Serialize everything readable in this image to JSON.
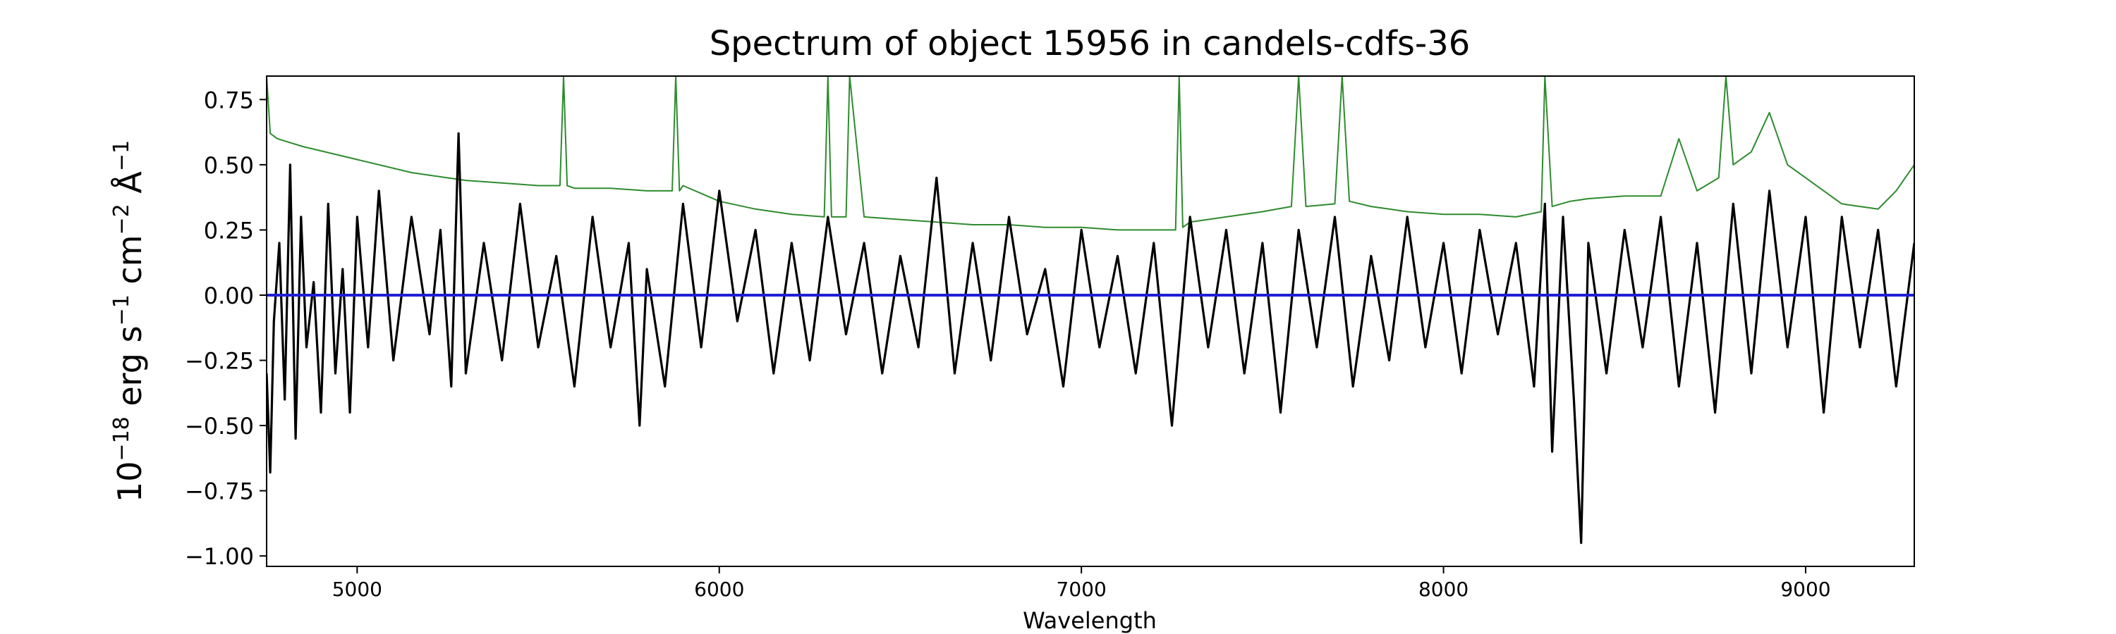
{
  "chart_data": {
    "type": "line",
    "title": "Spectrum of object 15956 in candels-cdfs-36",
    "xlabel": "Wavelength",
    "ylabel_parts": {
      "base": "10",
      "exp1": "−18",
      "t1": " erg s",
      "exp2": "−1",
      "t2": " cm",
      "exp3": "−2",
      "t3": " Å",
      "exp4": "−1"
    },
    "xlim": [
      4750,
      9300
    ],
    "ylim": [
      -1.04,
      0.84
    ],
    "xticks": [
      5000,
      6000,
      7000,
      8000,
      9000
    ],
    "yticks": [
      -1.0,
      -0.75,
      -0.5,
      -0.25,
      0.0,
      0.25,
      0.5,
      0.75
    ],
    "xtick_labels": [
      "5000",
      "6000",
      "7000",
      "8000",
      "9000"
    ],
    "ytick_labels": [
      "−1.00",
      "−0.75",
      "−0.50",
      "−0.25",
      "0.00",
      "0.25",
      "0.50",
      "0.75"
    ],
    "grid": false,
    "colors": {
      "flux": "#000000",
      "error": "#2e8b2e",
      "zero": "#1f1fd6"
    },
    "series": [
      {
        "role": "flux",
        "x": [
          4750,
          4760,
          4770,
          4785,
          4800,
          4815,
          4830,
          4845,
          4860,
          4880,
          4900,
          4920,
          4940,
          4960,
          4980,
          5000,
          5030,
          5060,
          5100,
          5150,
          5200,
          5230,
          5260,
          5280,
          5300,
          5350,
          5400,
          5450,
          5500,
          5550,
          5600,
          5650,
          5700,
          5750,
          5780,
          5800,
          5850,
          5900,
          5950,
          6000,
          6050,
          6100,
          6150,
          6200,
          6250,
          6300,
          6350,
          6400,
          6450,
          6500,
          6550,
          6600,
          6650,
          6700,
          6750,
          6800,
          6850,
          6900,
          6950,
          7000,
          7050,
          7100,
          7150,
          7200,
          7250,
          7300,
          7350,
          7400,
          7450,
          7500,
          7550,
          7600,
          7650,
          7700,
          7750,
          7800,
          7850,
          7900,
          7950,
          8000,
          8050,
          8100,
          8150,
          8200,
          8250,
          8280,
          8300,
          8330,
          8360,
          8380,
          8400,
          8450,
          8500,
          8550,
          8600,
          8650,
          8700,
          8750,
          8800,
          8850,
          8900,
          8950,
          9000,
          9050,
          9100,
          9150,
          9200,
          9250,
          9300
        ],
        "y": [
          -0.3,
          -0.68,
          -0.1,
          0.2,
          -0.4,
          0.5,
          -0.55,
          0.3,
          -0.2,
          0.05,
          -0.45,
          0.35,
          -0.3,
          0.1,
          -0.45,
          0.3,
          -0.2,
          0.4,
          -0.25,
          0.3,
          -0.15,
          0.25,
          -0.35,
          0.62,
          -0.3,
          0.2,
          -0.25,
          0.35,
          -0.2,
          0.15,
          -0.35,
          0.3,
          -0.2,
          0.2,
          -0.5,
          0.1,
          -0.35,
          0.35,
          -0.2,
          0.4,
          -0.1,
          0.25,
          -0.3,
          0.2,
          -0.25,
          0.3,
          -0.15,
          0.2,
          -0.3,
          0.15,
          -0.2,
          0.45,
          -0.3,
          0.2,
          -0.25,
          0.3,
          -0.15,
          0.1,
          -0.35,
          0.25,
          -0.2,
          0.15,
          -0.3,
          0.2,
          -0.5,
          0.3,
          -0.2,
          0.25,
          -0.3,
          0.2,
          -0.45,
          0.25,
          -0.2,
          0.3,
          -0.35,
          0.15,
          -0.25,
          0.3,
          -0.2,
          0.2,
          -0.3,
          0.25,
          -0.15,
          0.2,
          -0.35,
          0.35,
          -0.6,
          0.3,
          -0.4,
          -0.95,
          0.2,
          -0.3,
          0.25,
          -0.2,
          0.3,
          -0.35,
          0.2,
          -0.45,
          0.35,
          -0.3,
          0.4,
          -0.2,
          0.3,
          -0.45,
          0.3,
          -0.2,
          0.25,
          -0.35,
          0.2
        ]
      },
      {
        "role": "error",
        "x": [
          4750,
          4760,
          4780,
          4850,
          5000,
          5150,
          5200,
          5300,
          5400,
          5500,
          5560,
          5570,
          5580,
          5600,
          5700,
          5800,
          5870,
          5880,
          5890,
          5900,
          6000,
          6100,
          6200,
          6290,
          6300,
          6310,
          6350,
          6360,
          6400,
          6500,
          6600,
          6700,
          6800,
          6900,
          7000,
          7100,
          7200,
          7260,
          7270,
          7280,
          7300,
          7400,
          7500,
          7580,
          7600,
          7620,
          7700,
          7720,
          7740,
          7800,
          7850,
          7900,
          8000,
          8100,
          8200,
          8270,
          8280,
          8300,
          8350,
          8400,
          8500,
          8600,
          8650,
          8700,
          8760,
          8780,
          8800,
          8850,
          8900,
          8950,
          9000,
          9050,
          9100,
          9150,
          9200,
          9250,
          9300
        ],
        "y": [
          0.84,
          0.62,
          0.6,
          0.57,
          0.52,
          0.47,
          0.46,
          0.44,
          0.43,
          0.42,
          0.42,
          0.84,
          0.42,
          0.41,
          0.41,
          0.4,
          0.4,
          0.84,
          0.4,
          0.42,
          0.36,
          0.33,
          0.31,
          0.3,
          0.84,
          0.3,
          0.3,
          0.84,
          0.3,
          0.29,
          0.28,
          0.27,
          0.27,
          0.26,
          0.26,
          0.25,
          0.25,
          0.25,
          0.84,
          0.26,
          0.28,
          0.3,
          0.32,
          0.34,
          0.84,
          0.34,
          0.35,
          0.84,
          0.36,
          0.34,
          0.33,
          0.32,
          0.31,
          0.31,
          0.3,
          0.32,
          0.84,
          0.34,
          0.36,
          0.37,
          0.38,
          0.38,
          0.6,
          0.4,
          0.45,
          0.84,
          0.5,
          0.55,
          0.7,
          0.5,
          0.45,
          0.4,
          0.35,
          0.34,
          0.33,
          0.4,
          0.5
        ]
      },
      {
        "role": "zero",
        "x": [
          4750,
          9300
        ],
        "y": [
          0.0,
          0.0
        ]
      }
    ]
  }
}
